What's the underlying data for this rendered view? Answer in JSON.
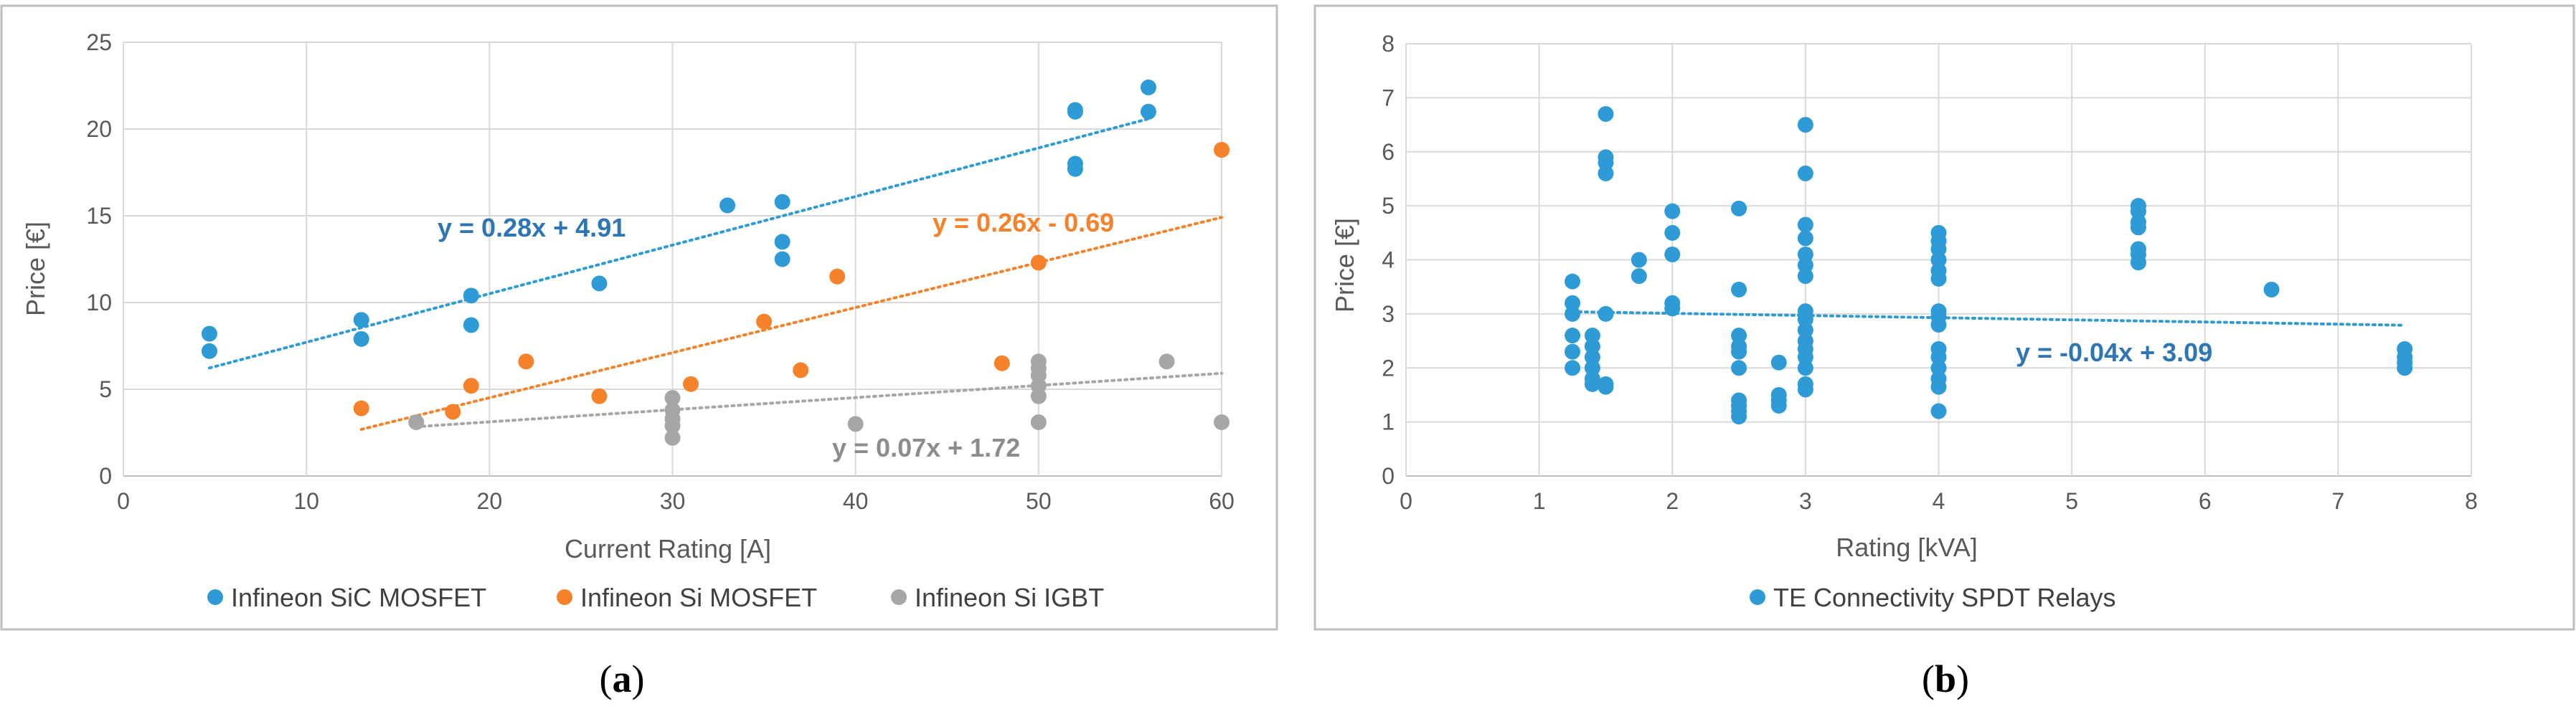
{
  "colors": {
    "sic": "#2E9BD6",
    "si_mosfet": "#F5822A",
    "igbt": "#A6A6A6",
    "relay": "#2E9BD6",
    "grid": "#D9D9D9",
    "frame": "#BFBFBF",
    "eq_blue": "#2E75B6",
    "eq_orange": "#F5822A",
    "eq_gray": "#8C8C8C"
  },
  "panels": [
    {
      "caption_open": "(",
      "caption_letter": "a",
      "caption_close": ")"
    },
    {
      "caption_open": "(",
      "caption_letter": "b",
      "caption_close": ")"
    }
  ],
  "chart_data": [
    {
      "type": "scatter",
      "xlabel": "Current Rating [A]",
      "ylabel": "Price [€]",
      "xlim": [
        0,
        60
      ],
      "ylim": [
        0,
        25
      ],
      "xticks": [
        0,
        10,
        20,
        30,
        40,
        50,
        60
      ],
      "yticks": [
        0,
        5,
        10,
        15,
        20,
        25
      ],
      "grid": true,
      "legend_position": "bottom",
      "series": [
        {
          "name": "Infineon SiC MOSFET",
          "color_key": "sic",
          "points": [
            [
              4.7,
              8.2
            ],
            [
              4.7,
              7.2
            ],
            [
              13,
              9.0
            ],
            [
              13,
              7.9
            ],
            [
              19,
              10.4
            ],
            [
              19,
              8.7
            ],
            [
              26,
              11.1
            ],
            [
              33,
              15.6
            ],
            [
              36,
              15.8
            ],
            [
              36,
              13.5
            ],
            [
              36,
              12.5
            ],
            [
              52,
              21.1
            ],
            [
              52,
              21.0
            ],
            [
              52,
              18.0
            ],
            [
              52,
              17.7
            ],
            [
              56,
              22.4
            ],
            [
              56,
              21.0
            ]
          ],
          "trendline": {
            "slope": 0.28,
            "intercept": 4.91,
            "x_range": [
              4.7,
              56
            ],
            "equation": "y = 0.28x + 4.91"
          }
        },
        {
          "name": "Infineon Si MOSFET",
          "color_key": "si_mosfet",
          "points": [
            [
              13,
              3.9
            ],
            [
              18,
              3.7
            ],
            [
              19,
              5.2
            ],
            [
              22,
              6.6
            ],
            [
              26,
              4.6
            ],
            [
              31,
              5.3
            ],
            [
              35,
              8.9
            ],
            [
              37,
              6.1
            ],
            [
              39,
              11.5
            ],
            [
              48,
              6.5
            ],
            [
              50,
              12.3
            ],
            [
              60,
              18.8
            ]
          ],
          "trendline": {
            "slope": 0.26,
            "intercept": -0.69,
            "x_range": [
              13,
              60
            ],
            "equation": "y = 0.26x - 0.69"
          }
        },
        {
          "name": "Infineon Si IGBT",
          "color_key": "igbt",
          "points": [
            [
              16,
              3.1
            ],
            [
              30,
              4.5
            ],
            [
              30,
              3.8
            ],
            [
              30,
              3.3
            ],
            [
              30,
              2.9
            ],
            [
              30,
              2.2
            ],
            [
              40,
              3.0
            ],
            [
              50,
              6.6
            ],
            [
              50,
              6.2
            ],
            [
              50,
              5.8
            ],
            [
              50,
              5.2
            ],
            [
              50,
              4.6
            ],
            [
              50,
              3.1
            ],
            [
              57,
              6.6
            ],
            [
              60,
              3.1
            ]
          ],
          "trendline": {
            "slope": 0.07,
            "intercept": 1.72,
            "x_range": [
              16,
              60
            ],
            "equation": "y = 0.07x + 1.72"
          }
        }
      ]
    },
    {
      "type": "scatter",
      "xlabel": "Rating [kVA]",
      "ylabel": "Price [€]",
      "xlim": [
        0,
        8
      ],
      "ylim": [
        0,
        8
      ],
      "xticks": [
        0,
        1,
        2,
        3,
        4,
        5,
        6,
        7,
        8
      ],
      "yticks": [
        0,
        1,
        2,
        3,
        4,
        5,
        6,
        7,
        8
      ],
      "grid": true,
      "legend_position": "bottom",
      "series": [
        {
          "name": "TE Connectivity SPDT Relays",
          "color_key": "relay",
          "points": [
            [
              1.25,
              3.6
            ],
            [
              1.25,
              3.2
            ],
            [
              1.25,
              3.0
            ],
            [
              1.25,
              2.6
            ],
            [
              1.25,
              2.3
            ],
            [
              1.25,
              2.0
            ],
            [
              1.4,
              2.6
            ],
            [
              1.4,
              2.4
            ],
            [
              1.4,
              2.2
            ],
            [
              1.4,
              2.0
            ],
            [
              1.4,
              1.8
            ],
            [
              1.4,
              1.7
            ],
            [
              1.5,
              6.7
            ],
            [
              1.5,
              5.9
            ],
            [
              1.5,
              5.8
            ],
            [
              1.5,
              5.6
            ],
            [
              1.5,
              3.0
            ],
            [
              1.5,
              1.7
            ],
            [
              1.5,
              1.65
            ],
            [
              1.75,
              4.0
            ],
            [
              1.75,
              3.7
            ],
            [
              2.0,
              4.9
            ],
            [
              2.0,
              4.5
            ],
            [
              2.0,
              4.1
            ],
            [
              2.0,
              3.2
            ],
            [
              2.0,
              3.1
            ],
            [
              2.5,
              4.95
            ],
            [
              2.5,
              3.45
            ],
            [
              2.5,
              2.6
            ],
            [
              2.5,
              2.4
            ],
            [
              2.5,
              2.3
            ],
            [
              2.5,
              2.0
            ],
            [
              2.5,
              1.4
            ],
            [
              2.5,
              1.3
            ],
            [
              2.5,
              1.2
            ],
            [
              2.5,
              1.1
            ],
            [
              2.8,
              2.1
            ],
            [
              2.8,
              1.5
            ],
            [
              2.8,
              1.4
            ],
            [
              2.8,
              1.3
            ],
            [
              3.0,
              6.5
            ],
            [
              3.0,
              5.6
            ],
            [
              3.0,
              4.65
            ],
            [
              3.0,
              4.4
            ],
            [
              3.0,
              4.1
            ],
            [
              3.0,
              3.9
            ],
            [
              3.0,
              3.7
            ],
            [
              3.0,
              3.05
            ],
            [
              3.0,
              2.9
            ],
            [
              3.0,
              2.7
            ],
            [
              3.0,
              2.5
            ],
            [
              3.0,
              2.35
            ],
            [
              3.0,
              2.2
            ],
            [
              3.0,
              2.0
            ],
            [
              3.0,
              1.7
            ],
            [
              3.0,
              1.6
            ],
            [
              4.0,
              4.5
            ],
            [
              4.0,
              4.35
            ],
            [
              4.0,
              4.2
            ],
            [
              4.0,
              4.0
            ],
            [
              4.0,
              3.8
            ],
            [
              4.0,
              3.65
            ],
            [
              4.0,
              3.05
            ],
            [
              4.0,
              2.95
            ],
            [
              4.0,
              2.8
            ],
            [
              4.0,
              2.35
            ],
            [
              4.0,
              2.2
            ],
            [
              4.0,
              2.0
            ],
            [
              4.0,
              1.8
            ],
            [
              4.0,
              1.65
            ],
            [
              4.0,
              1.2
            ],
            [
              5.5,
              5.0
            ],
            [
              5.5,
              4.9
            ],
            [
              5.5,
              4.7
            ],
            [
              5.5,
              4.6
            ],
            [
              5.5,
              4.2
            ],
            [
              5.5,
              4.1
            ],
            [
              5.5,
              3.95
            ],
            [
              6.5,
              3.45
            ],
            [
              7.5,
              2.35
            ],
            [
              7.5,
              2.2
            ],
            [
              7.5,
              2.1
            ],
            [
              7.5,
              2.0
            ]
          ],
          "trendline": {
            "slope": -0.04,
            "intercept": 3.09,
            "x_range": [
              1.25,
              7.5
            ],
            "equation": "y = -0.04x + 3.09"
          }
        }
      ]
    }
  ]
}
